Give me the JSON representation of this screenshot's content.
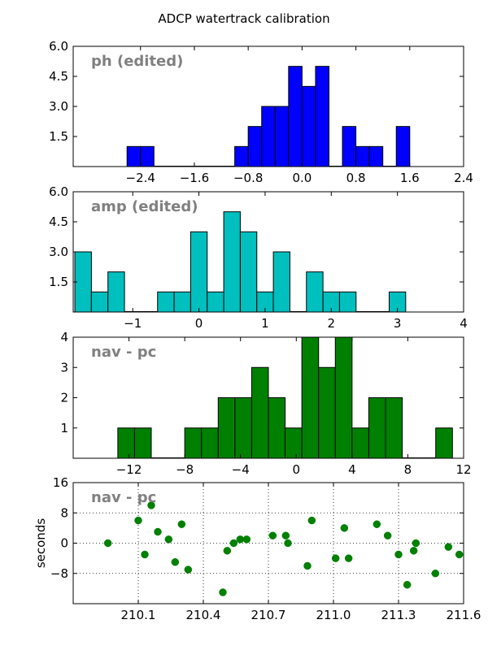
{
  "chart_data": {
    "title": "ADCP watertrack calibration",
    "panels": [
      {
        "type": "bar",
        "label": "ph (edited)",
        "color": "#0000ff",
        "xlim": [
          -3.4,
          2.4
        ],
        "ylim": [
          0,
          6.0
        ],
        "xticks": [
          -2.4,
          -1.6,
          -0.8,
          0.0,
          0.8,
          1.6,
          2.4
        ],
        "xtick_labels": [
          "−2.4",
          "−1.6",
          "−0.8",
          "0.0",
          "0.8",
          "1.6",
          "2.4"
        ],
        "yticks": [
          1.5,
          3.0,
          4.5,
          6.0
        ],
        "ytick_labels": [
          "1.5",
          "3.0",
          "4.5",
          "6.0"
        ],
        "bin_width": 0.2,
        "bins": [
          {
            "x": -2.5,
            "count": 1
          },
          {
            "x": -2.3,
            "count": 1
          },
          {
            "x": -2.1,
            "count": 0
          },
          {
            "x": -1.9,
            "count": 0
          },
          {
            "x": -1.7,
            "count": 0
          },
          {
            "x": -1.5,
            "count": 0
          },
          {
            "x": -1.3,
            "count": 0
          },
          {
            "x": -1.1,
            "count": 0
          },
          {
            "x": -0.9,
            "count": 1
          },
          {
            "x": -0.7,
            "count": 2
          },
          {
            "x": -0.5,
            "count": 3
          },
          {
            "x": -0.3,
            "count": 3
          },
          {
            "x": -0.1,
            "count": 5
          },
          {
            "x": 0.1,
            "count": 4
          },
          {
            "x": 0.3,
            "count": 5
          },
          {
            "x": 0.5,
            "count": 0
          },
          {
            "x": 0.7,
            "count": 2
          },
          {
            "x": 0.9,
            "count": 1
          },
          {
            "x": 1.1,
            "count": 1
          },
          {
            "x": 1.3,
            "count": 0
          },
          {
            "x": 1.5,
            "count": 2
          }
        ]
      },
      {
        "type": "bar",
        "label": "amp (edited)",
        "color": "#00bfbf",
        "xlim": [
          -1.9,
          4.0
        ],
        "ylim": [
          0,
          6.0
        ],
        "xticks": [
          -1,
          0,
          1,
          2,
          3,
          4
        ],
        "xtick_labels": [
          "−1",
          "0",
          "1",
          "2",
          "3",
          "4"
        ],
        "yticks": [
          1.5,
          3.0,
          4.5,
          6.0
        ],
        "ytick_labels": [
          "1.5",
          "3.0",
          "4.5",
          "6.0"
        ],
        "bin_width": 0.25,
        "bins": [
          {
            "x": -1.75,
            "count": 3
          },
          {
            "x": -1.5,
            "count": 1
          },
          {
            "x": -1.25,
            "count": 2
          },
          {
            "x": -1.0,
            "count": 0
          },
          {
            "x": -0.75,
            "count": 0
          },
          {
            "x": -0.5,
            "count": 1
          },
          {
            "x": -0.25,
            "count": 1
          },
          {
            "x": 0.0,
            "count": 4
          },
          {
            "x": 0.25,
            "count": 1
          },
          {
            "x": 0.5,
            "count": 5
          },
          {
            "x": 0.75,
            "count": 4
          },
          {
            "x": 1.0,
            "count": 1
          },
          {
            "x": 1.25,
            "count": 3
          },
          {
            "x": 1.5,
            "count": 0
          },
          {
            "x": 1.75,
            "count": 2
          },
          {
            "x": 2.0,
            "count": 1
          },
          {
            "x": 2.25,
            "count": 1
          },
          {
            "x": 2.5,
            "count": 0
          },
          {
            "x": 2.75,
            "count": 0
          },
          {
            "x": 3.0,
            "count": 1
          }
        ]
      },
      {
        "type": "bar",
        "label": "nav - pc",
        "color": "#008000",
        "xlim": [
          -16,
          12
        ],
        "ylim": [
          0,
          4
        ],
        "xticks": [
          -12,
          -8,
          -4,
          0,
          4,
          8,
          12
        ],
        "xtick_labels": [
          "−12",
          "−8",
          "−4",
          "0",
          "4",
          "8",
          "12"
        ],
        "yticks": [
          1,
          2,
          3,
          4
        ],
        "ytick_labels": [
          "1",
          "2",
          "3",
          "4"
        ],
        "bin_width": 1.2,
        "bins": [
          {
            "x": -12.2,
            "count": 1
          },
          {
            "x": -11.0,
            "count": 1
          },
          {
            "x": -9.8,
            "count": 0
          },
          {
            "x": -8.6,
            "count": 0
          },
          {
            "x": -7.4,
            "count": 1
          },
          {
            "x": -6.2,
            "count": 1
          },
          {
            "x": -5.0,
            "count": 2
          },
          {
            "x": -3.8,
            "count": 2
          },
          {
            "x": -2.6,
            "count": 3
          },
          {
            "x": -1.4,
            "count": 2
          },
          {
            "x": -0.2,
            "count": 1
          },
          {
            "x": 1.0,
            "count": 4
          },
          {
            "x": 2.2,
            "count": 3
          },
          {
            "x": 3.4,
            "count": 4
          },
          {
            "x": 4.6,
            "count": 1
          },
          {
            "x": 5.8,
            "count": 2
          },
          {
            "x": 7.0,
            "count": 2
          },
          {
            "x": 8.2,
            "count": 0
          },
          {
            "x": 9.4,
            "count": 0
          },
          {
            "x": 10.6,
            "count": 1
          }
        ]
      },
      {
        "type": "scatter",
        "label": "nav - pc",
        "color": "#008000",
        "ylabel": "seconds",
        "xlim": [
          209.8,
          211.6
        ],
        "ylim": [
          -16,
          16
        ],
        "xticks": [
          210.1,
          210.4,
          210.7,
          211.0,
          211.3,
          211.6
        ],
        "xtick_labels": [
          "210.1",
          "210.4",
          "210.7",
          "211.0",
          "211.3",
          "211.6"
        ],
        "yticks": [
          -8,
          0,
          8,
          16
        ],
        "ytick_labels": [
          "−8",
          "0",
          "8",
          "16"
        ],
        "grid": true,
        "points": [
          {
            "x": 209.96,
            "y": 0
          },
          {
            "x": 210.1,
            "y": 6
          },
          {
            "x": 210.13,
            "y": -3
          },
          {
            "x": 210.16,
            "y": 10
          },
          {
            "x": 210.19,
            "y": 3
          },
          {
            "x": 210.24,
            "y": 1
          },
          {
            "x": 210.27,
            "y": -5
          },
          {
            "x": 210.3,
            "y": 5
          },
          {
            "x": 210.33,
            "y": -7
          },
          {
            "x": 210.49,
            "y": -13
          },
          {
            "x": 210.51,
            "y": -2
          },
          {
            "x": 210.54,
            "y": 0
          },
          {
            "x": 210.57,
            "y": 1
          },
          {
            "x": 210.6,
            "y": 1
          },
          {
            "x": 210.72,
            "y": 2
          },
          {
            "x": 210.78,
            "y": 2
          },
          {
            "x": 210.79,
            "y": 0
          },
          {
            "x": 210.88,
            "y": -6
          },
          {
            "x": 210.9,
            "y": 6
          },
          {
            "x": 211.01,
            "y": -4
          },
          {
            "x": 211.05,
            "y": 4
          },
          {
            "x": 211.07,
            "y": -4
          },
          {
            "x": 211.2,
            "y": 5
          },
          {
            "x": 211.25,
            "y": 2
          },
          {
            "x": 211.3,
            "y": -3
          },
          {
            "x": 211.34,
            "y": -11
          },
          {
            "x": 211.37,
            "y": -2
          },
          {
            "x": 211.38,
            "y": 0
          },
          {
            "x": 211.47,
            "y": -8
          },
          {
            "x": 211.53,
            "y": -1
          },
          {
            "x": 211.58,
            "y": -3
          }
        ]
      }
    ]
  }
}
